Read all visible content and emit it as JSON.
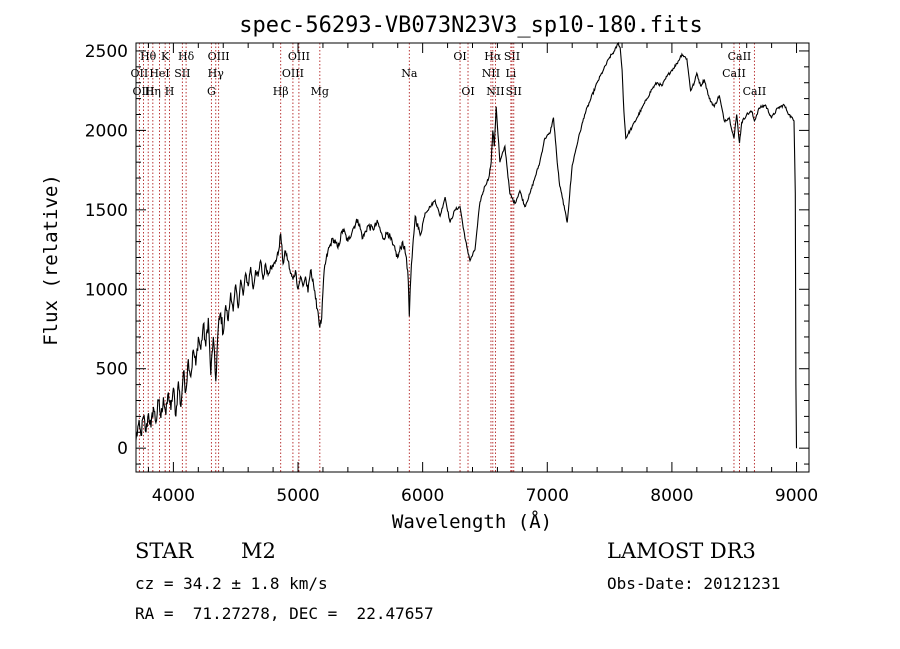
{
  "chart_data": {
    "type": "line",
    "title": "spec-56293-VB073N23V3_sp10-180.fits",
    "xlabel": "Wavelength (Å)",
    "ylabel": "Flux (relative)",
    "xlim": [
      3700,
      9100
    ],
    "ylim": [
      -150,
      2550
    ],
    "x_ticks": [
      4000,
      5000,
      6000,
      7000,
      8000,
      9000
    ],
    "y_ticks": [
      0,
      500,
      1000,
      1500,
      2000,
      2500
    ],
    "grid": false,
    "series": [
      {
        "name": "spectrum",
        "x": [
          3700,
          3720,
          3740,
          3760,
          3780,
          3800,
          3820,
          3840,
          3860,
          3880,
          3900,
          3920,
          3940,
          3960,
          3980,
          4000,
          4020,
          4040,
          4060,
          4080,
          4100,
          4120,
          4140,
          4160,
          4180,
          4200,
          4220,
          4240,
          4260,
          4280,
          4300,
          4320,
          4340,
          4360,
          4380,
          4400,
          4420,
          4440,
          4460,
          4480,
          4500,
          4520,
          4540,
          4560,
          4580,
          4600,
          4620,
          4640,
          4660,
          4680,
          4700,
          4720,
          4740,
          4760,
          4780,
          4800,
          4820,
          4840,
          4861,
          4880,
          4900,
          4920,
          4940,
          4960,
          4980,
          5000,
          5020,
          5040,
          5060,
          5080,
          5100,
          5120,
          5140,
          5160,
          5175,
          5190,
          5210,
          5240,
          5280,
          5320,
          5360,
          5400,
          5440,
          5480,
          5520,
          5560,
          5600,
          5640,
          5680,
          5720,
          5760,
          5800,
          5840,
          5870,
          5885,
          5893,
          5900,
          5915,
          5940,
          5980,
          6020,
          6060,
          6100,
          6140,
          6180,
          6220,
          6260,
          6300,
          6340,
          6380,
          6420,
          6460,
          6500,
          6530,
          6550,
          6563,
          6575,
          6590,
          6620,
          6660,
          6700,
          6740,
          6780,
          6820,
          6860,
          6900,
          6940,
          6980,
          7020,
          7050,
          7080,
          7100,
          7120,
          7140,
          7160,
          7200,
          7250,
          7300,
          7350,
          7400,
          7450,
          7500,
          7540,
          7570,
          7585,
          7600,
          7615,
          7630,
          7650,
          7680,
          7720,
          7760,
          7800,
          7840,
          7880,
          7920,
          7960,
          8000,
          8040,
          8080,
          8120,
          8150,
          8180,
          8200,
          8230,
          8260,
          8300,
          8340,
          8380,
          8420,
          8460,
          8498,
          8520,
          8542,
          8560,
          8600,
          8640,
          8662,
          8700,
          8750,
          8800,
          8850,
          8900,
          8940,
          8980,
          8990,
          8995,
          9000
        ],
        "y": [
          50,
          150,
          80,
          200,
          100,
          220,
          130,
          260,
          160,
          300,
          190,
          320,
          210,
          350,
          240,
          380,
          200,
          420,
          260,
          480,
          360,
          560,
          450,
          620,
          520,
          700,
          620,
          780,
          640,
          820,
          460,
          700,
          420,
          760,
          850,
          720,
          900,
          800,
          980,
          860,
          1030,
          880,
          1060,
          960,
          1100,
          1020,
          1140,
          1000,
          1120,
          1080,
          1180,
          1060,
          1160,
          1090,
          1150,
          1140,
          1180,
          1220,
          1350,
          1160,
          1240,
          1180,
          1100,
          1060,
          1120,
          1000,
          1080,
          1020,
          1080,
          980,
          1120,
          1060,
          940,
          860,
          760,
          820,
          1120,
          1240,
          1320,
          1260,
          1380,
          1300,
          1380,
          1440,
          1320,
          1400,
          1380,
          1420,
          1320,
          1360,
          1280,
          1200,
          1300,
          1200,
          1050,
          830,
          1000,
          1200,
          1460,
          1340,
          1480,
          1520,
          1560,
          1460,
          1580,
          1420,
          1500,
          1520,
          1320,
          1180,
          1250,
          1550,
          1650,
          1700,
          1800,
          2000,
          1900,
          2150,
          1800,
          1900,
          1600,
          1540,
          1620,
          1520,
          1600,
          1700,
          1800,
          1950,
          1980,
          2080,
          1800,
          1650,
          1580,
          1500,
          1420,
          1780,
          1950,
          2100,
          2200,
          2300,
          2380,
          2460,
          2500,
          2550,
          2520,
          2380,
          2120,
          1950,
          1980,
          2020,
          2080,
          2140,
          2200,
          2260,
          2300,
          2280,
          2340,
          2380,
          2420,
          2480,
          2450,
          2250,
          2300,
          2360,
          2280,
          2320,
          2200,
          2150,
          2220,
          2060,
          2080,
          1950,
          2100,
          1920,
          2050,
          2100,
          2120,
          2060,
          2140,
          2160,
          2080,
          2140,
          2160,
          2100,
          2060,
          1600,
          400,
          0
        ]
      }
    ],
    "line_markers": [
      {
        "label": "Hθ",
        "x": 3798,
        "row": 1
      },
      {
        "label": "K",
        "x": 3934,
        "row": 1
      },
      {
        "label": "Hδ",
        "x": 4102,
        "row": 1
      },
      {
        "label": "OIII",
        "x": 4363,
        "row": 1
      },
      {
        "label": "OIII",
        "x": 5007,
        "row": 1
      },
      {
        "label": "OI",
        "x": 6300,
        "row": 1
      },
      {
        "label": "Hα",
        "x": 6563,
        "row": 1
      },
      {
        "label": "SII",
        "x": 6717,
        "row": 1
      },
      {
        "label": "CaII",
        "x": 8542,
        "row": 1
      },
      {
        "label": "OII",
        "x": 3727,
        "row": 2
      },
      {
        "label": "HeI",
        "x": 3889,
        "row": 2
      },
      {
        "label": "SII",
        "x": 4072,
        "row": 2
      },
      {
        "label": "Hγ",
        "x": 4340,
        "row": 2
      },
      {
        "label": "OIII",
        "x": 4959,
        "row": 2
      },
      {
        "label": "Na",
        "x": 5893,
        "row": 2
      },
      {
        "label": "NII",
        "x": 6548,
        "row": 2
      },
      {
        "label": "Li",
        "x": 6708,
        "row": 2
      },
      {
        "label": "CaII",
        "x": 8498,
        "row": 2
      },
      {
        "label": "OIII",
        "x": 3760,
        "row": 3
      },
      {
        "label": "Hη",
        "x": 3835,
        "row": 3
      },
      {
        "label": "H",
        "x": 3969,
        "row": 3
      },
      {
        "label": "G",
        "x": 4305,
        "row": 3
      },
      {
        "label": "Hβ",
        "x": 4861,
        "row": 3
      },
      {
        "label": "Mg",
        "x": 5175,
        "row": 3
      },
      {
        "label": "OI",
        "x": 6364,
        "row": 3
      },
      {
        "label": "NII",
        "x": 6584,
        "row": 3
      },
      {
        "label": "SII",
        "x": 6731,
        "row": 3
      },
      {
        "label": "CaII",
        "x": 8662,
        "row": 3
      }
    ]
  },
  "info": {
    "object_type": "STAR",
    "subclass": "M2",
    "survey": "LAMOST DR3",
    "cz": "cz = 34.2 ± 1.8 km/s",
    "obs_date": "Obs-Date: 20121231",
    "coords": "RA =  71.27278, DEC =  22.47657"
  }
}
